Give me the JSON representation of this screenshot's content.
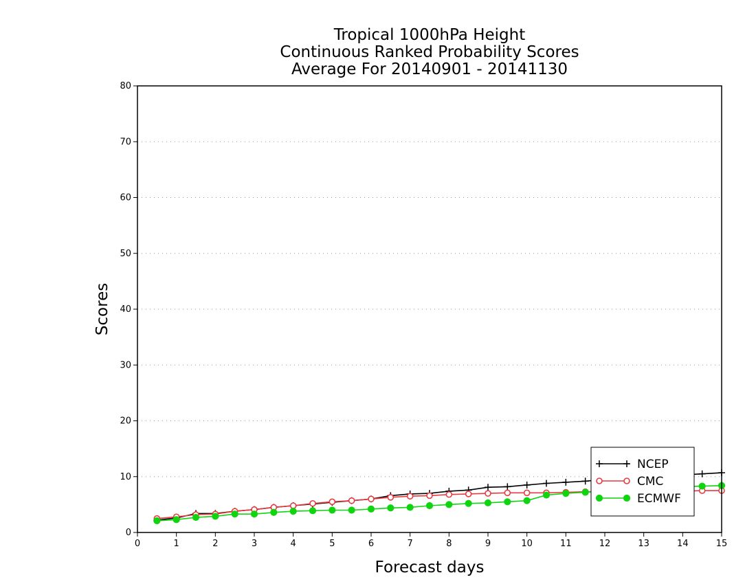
{
  "chart_data": {
    "type": "line",
    "title": [
      "Tropical 1000hPa Height",
      "Continuous Ranked Probability Scores",
      "Average For 20140901 - 20141130"
    ],
    "xlabel": "Forecast days",
    "ylabel": "Scores",
    "xlim": [
      0,
      15
    ],
    "ylim": [
      0,
      80
    ],
    "xticks": [
      0,
      1,
      2,
      3,
      4,
      5,
      6,
      7,
      8,
      9,
      10,
      11,
      12,
      13,
      14,
      15
    ],
    "yticks": [
      0,
      10,
      20,
      30,
      40,
      50,
      60,
      70,
      80
    ],
    "grid": "horizontal dotted",
    "legend_position": "bottom-right",
    "x": [
      0.5,
      1,
      1.5,
      2,
      2.5,
      3,
      3.5,
      4,
      4.5,
      5,
      5.5,
      6,
      6.5,
      7,
      7.5,
      8,
      8.5,
      9,
      9.5,
      10,
      10.5,
      11,
      11.5,
      12,
      12.5,
      13,
      13.5,
      14,
      14.5,
      15
    ],
    "series": [
      {
        "name": "NCEP",
        "color": "#000000",
        "marker": "plus",
        "values": [
          2.2,
          2.6,
          3.4,
          3.4,
          3.8,
          4.1,
          4.5,
          4.8,
          5.1,
          5.4,
          5.7,
          6.0,
          6.6,
          6.9,
          7.0,
          7.4,
          7.6,
          8.1,
          8.2,
          8.5,
          8.8,
          9.0,
          9.2,
          9.5,
          9.7,
          9.9,
          10.1,
          10.3,
          10.5,
          10.7
        ]
      },
      {
        "name": "CMC",
        "color": "#e8393f",
        "marker": "open-circle",
        "values": [
          2.5,
          2.8,
          3.2,
          3.3,
          3.8,
          4.1,
          4.5,
          4.8,
          5.2,
          5.5,
          5.7,
          6.0,
          6.3,
          6.5,
          6.6,
          6.8,
          6.9,
          7.0,
          7.1,
          7.1,
          7.1,
          7.2,
          7.3,
          7.3,
          7.3,
          7.4,
          7.4,
          7.4,
          7.5,
          7.5
        ]
      },
      {
        "name": "ECMWF",
        "color": "#11d411",
        "marker": "filled-circle",
        "values": [
          2.1,
          2.3,
          2.7,
          2.9,
          3.3,
          3.3,
          3.6,
          3.8,
          3.9,
          4.0,
          4.0,
          4.2,
          4.4,
          4.5,
          4.8,
          5.0,
          5.2,
          5.3,
          5.5,
          5.7,
          6.7,
          7.0,
          7.2,
          7.4,
          7.6,
          7.8,
          8.0,
          8.2,
          8.3,
          8.4
        ]
      }
    ]
  }
}
